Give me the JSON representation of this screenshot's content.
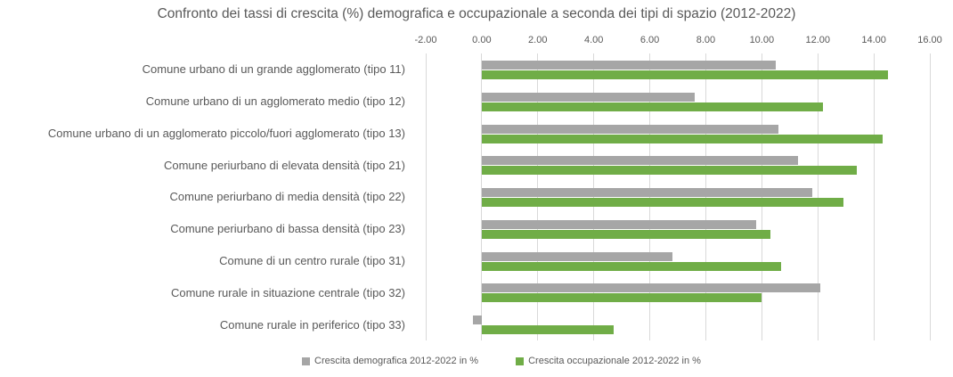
{
  "title": "Confronto dei tassi di crescita (%) demografica e occupazionale a seconda dei tipi di spazio (2012-2022)",
  "chart_data": {
    "type": "bar",
    "orientation": "horizontal",
    "title": "Confronto dei tassi di crescita (%) demografica e occupazionale a seconda dei tipi di spazio (2012-2022)",
    "categories": [
      "Comune urbano di un grande agglomerato (tipo 11)",
      "Comune urbano di un agglomerato medio (tipo 12)",
      "Comune urbano di un agglomerato piccolo/fuori agglomerato (tipo 13)",
      "Comune periurbano di elevata densità (tipo 21)",
      "Comune periurbano di media densità (tipo 22)",
      "Comune periurbano di bassa densità (tipo 23)",
      "Comune di un centro rurale (tipo 31)",
      "Comune rurale in situazione centrale (tipo 32)",
      "Comune rurale in periferico (tipo 33)"
    ],
    "series": [
      {
        "name": "Crescita demografica 2012-2022 in %",
        "color": "#A6A6A6",
        "values": [
          10.5,
          7.6,
          10.6,
          11.3,
          11.8,
          9.8,
          6.8,
          12.1,
          -0.3
        ]
      },
      {
        "name": "Crescita occupazionale 2012-2022 in %",
        "color": "#70AD47",
        "values": [
          14.5,
          12.2,
          14.3,
          13.4,
          12.9,
          10.3,
          10.7,
          10.0,
          4.7
        ]
      }
    ],
    "xlim": [
      -2,
      16
    ],
    "tick_step": 2,
    "tick_values": [
      -2,
      0,
      2,
      4,
      6,
      8,
      10,
      12,
      14,
      16
    ],
    "tick_labels": [
      "-2.00",
      "0.00",
      "2.00",
      "4.00",
      "6.00",
      "8.00",
      "10.00",
      "12.00",
      "14.00",
      "16.00"
    ],
    "grid": true,
    "legend_position": "bottom"
  },
  "colors": {
    "text": "#595959",
    "gridline": "#D9D9D9",
    "background": "#FFFFFF",
    "series_demografica": "#A6A6A6",
    "series_occupazionale": "#70AD47"
  }
}
